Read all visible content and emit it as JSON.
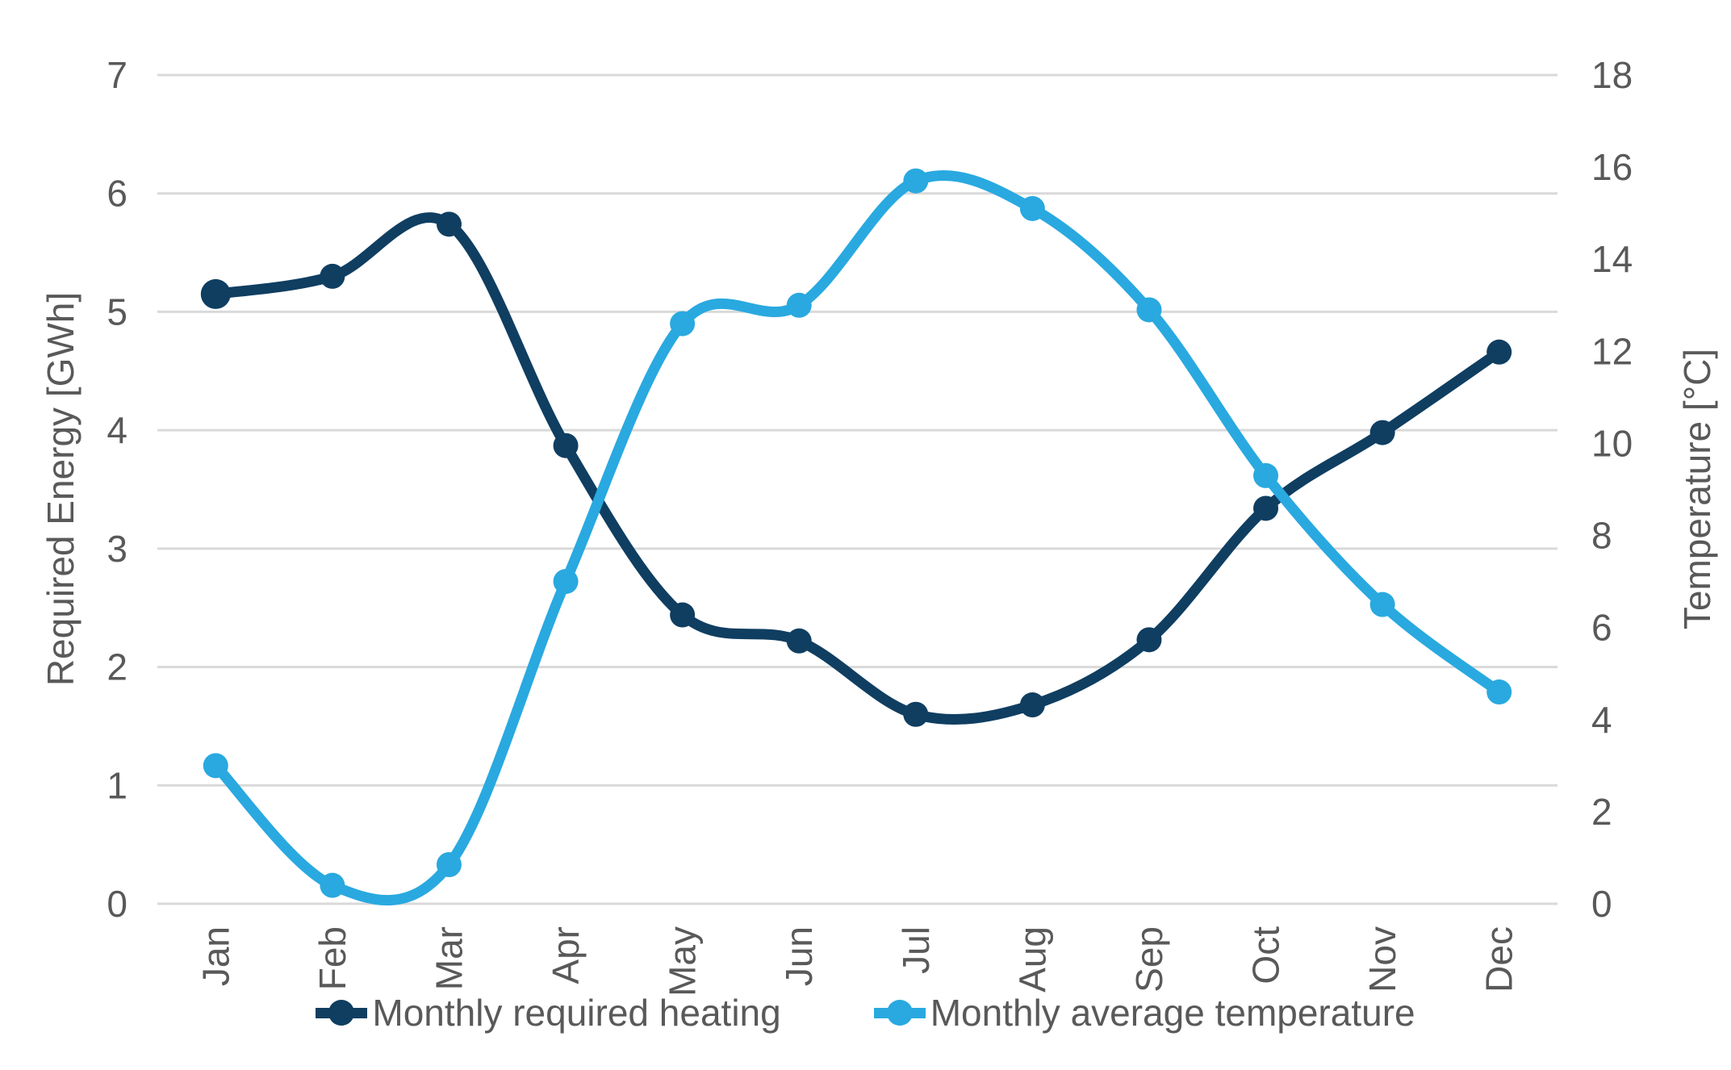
{
  "chart_data": {
    "type": "line",
    "categories": [
      "Jan",
      "Feb",
      "Mar",
      "Apr",
      "May",
      "Jun",
      "Jul",
      "Aug",
      "Sep",
      "Oct",
      "Nov",
      "Dec"
    ],
    "series": [
      {
        "name": "Monthly required heating",
        "axis": "left",
        "unit": "GWh",
        "color": "#0F3E61",
        "values": [
          5.15,
          5.3,
          5.74,
          3.87,
          2.44,
          2.22,
          1.6,
          1.68,
          2.23,
          3.34,
          3.98,
          4.66
        ]
      },
      {
        "name": "Monthly average temperature",
        "axis": "right",
        "unit": "°C",
        "color": "#29A9E0",
        "values": [
          3.0,
          0.4,
          0.85,
          7.0,
          12.6,
          13.0,
          15.7,
          15.1,
          12.9,
          9.3,
          6.5,
          4.6
        ]
      }
    ],
    "left_axis": {
      "title": "Required Energy [GWh]",
      "min": 0,
      "max": 7,
      "step": 1,
      "ticks": [
        "7",
        "6",
        "5",
        "4",
        "3",
        "2",
        "1",
        "0"
      ]
    },
    "right_axis": {
      "title": "Temperature [°C]",
      "min": 0,
      "max": 18,
      "step": 2,
      "ticks": [
        "18",
        "16",
        "14",
        "12",
        "10",
        "8",
        "6",
        "4",
        "2",
        "0"
      ]
    },
    "grid": true,
    "legend_position": "bottom",
    "style": {
      "gridline_color": "#D9D9D9",
      "text_color": "#595959",
      "background": "#FFFFFF",
      "line_width": 13,
      "marker_radius": 15.5
    }
  }
}
